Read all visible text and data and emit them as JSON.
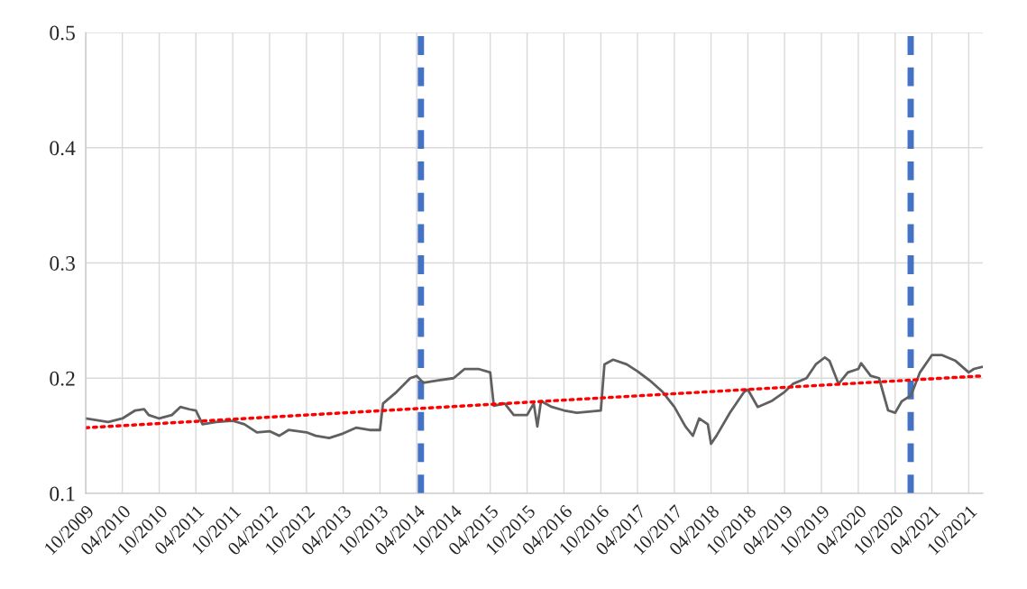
{
  "chart_data": {
    "type": "line",
    "x": [
      "2009-10-01",
      "2010-01-21",
      "2010-04-01",
      "2010-06-04",
      "2010-07-18",
      "2010-08-10",
      "2010-10-01",
      "2010-12-03",
      "2011-01-14",
      "2011-02-28",
      "2011-04-01",
      "2011-05-04",
      "2011-07-10",
      "2011-10-01",
      "2011-11-28",
      "2012-01-29",
      "2012-04-01",
      "2012-05-19",
      "2012-07-04",
      "2012-10-01",
      "2012-11-16",
      "2013-01-22",
      "2013-04-01",
      "2013-06-04",
      "2013-08-10",
      "2013-10-01",
      "2013-10-16",
      "2013-12-22",
      "2014-02-28",
      "2014-04-01",
      "2014-05-04",
      "2014-07-12",
      "2014-10-01",
      "2014-11-25",
      "2015-02-01",
      "2015-04-01",
      "2015-04-19",
      "2015-06-12",
      "2015-07-27",
      "2015-10-01",
      "2015-11-03",
      "2015-11-21",
      "2015-12-09",
      "2016-02-01",
      "2016-04-01",
      "2016-06-04",
      "2016-10-01",
      "2016-10-19",
      "2016-12-01",
      "2017-02-06",
      "2017-04-01",
      "2017-06-01",
      "2017-08-04",
      "2017-10-01",
      "2017-11-25",
      "2018-01-01",
      "2018-02-01",
      "2018-03-16",
      "2018-04-01",
      "2018-04-28",
      "2018-07-04",
      "2018-09-12",
      "2018-10-01",
      "2018-11-19",
      "2019-01-25",
      "2019-04-01",
      "2019-05-12",
      "2019-07-19",
      "2019-09-03",
      "2019-10-18",
      "2019-11-10",
      "2019-12-25",
      "2020-02-09",
      "2020-04-01",
      "2020-04-15",
      "2020-06-01",
      "2020-07-13",
      "2020-08-27",
      "2020-10-01",
      "2020-11-03",
      "2020-12-18",
      "2021-02-01",
      "2021-04-01",
      "2021-05-22",
      "2021-07-28",
      "2021-10-01",
      "2021-10-27",
      "2021-12-10"
    ],
    "series": [
      {
        "color": "#606060",
        "line_style": "solid",
        "values": [
          0.165,
          0.162,
          0.165,
          0.172,
          0.173,
          0.168,
          0.165,
          0.168,
          0.175,
          0.173,
          0.172,
          0.16,
          0.162,
          0.163,
          0.16,
          0.153,
          0.154,
          0.15,
          0.155,
          0.153,
          0.15,
          0.148,
          0.152,
          0.157,
          0.155,
          0.155,
          0.178,
          0.188,
          0.2,
          0.202,
          0.196,
          0.198,
          0.2,
          0.208,
          0.208,
          0.205,
          0.176,
          0.178,
          0.168,
          0.168,
          0.178,
          0.158,
          0.18,
          0.175,
          0.172,
          0.17,
          0.172,
          0.212,
          0.216,
          0.212,
          0.206,
          0.198,
          0.188,
          0.175,
          0.158,
          0.15,
          0.165,
          0.16,
          0.143,
          0.15,
          0.17,
          0.188,
          0.19,
          0.175,
          0.18,
          0.188,
          0.195,
          0.2,
          0.212,
          0.218,
          0.215,
          0.195,
          0.205,
          0.208,
          0.213,
          0.202,
          0.2,
          0.172,
          0.17,
          0.18,
          0.185,
          0.205,
          0.22,
          0.22,
          0.215,
          0.205,
          0.208,
          0.21
        ]
      },
      {
        "color": "#ff0000",
        "line_style": "dotted",
        "x": [
          "2009-10-01",
          "2021-12-10"
        ],
        "values": [
          0.157,
          0.202
        ]
      }
    ],
    "ref_lines": [
      {
        "axis": "x",
        "value": "2014-04-22",
        "color": "#4472c4",
        "line_style": "dashed"
      },
      {
        "axis": "x",
        "value": "2020-12-17",
        "color": "#4472c4",
        "line_style": "dashed"
      }
    ],
    "xlim": [
      "2009-10-01",
      "2021-12-10"
    ],
    "xticks": [
      {
        "value": "2009-10-01",
        "label": "10/2009"
      },
      {
        "value": "2010-04-01",
        "label": "04/2010"
      },
      {
        "value": "2010-10-01",
        "label": "10/2010"
      },
      {
        "value": "2011-04-01",
        "label": "04/2011"
      },
      {
        "value": "2011-10-01",
        "label": "10/2011"
      },
      {
        "value": "2012-04-01",
        "label": "04/2012"
      },
      {
        "value": "2012-10-01",
        "label": "10/2012"
      },
      {
        "value": "2013-04-01",
        "label": "04/2013"
      },
      {
        "value": "2013-10-01",
        "label": "10/2013"
      },
      {
        "value": "2014-04-01",
        "label": "04/2014"
      },
      {
        "value": "2014-10-01",
        "label": "10/2014"
      },
      {
        "value": "2015-04-01",
        "label": "04/2015"
      },
      {
        "value": "2015-10-01",
        "label": "10/2015"
      },
      {
        "value": "2016-04-01",
        "label": "04/2016"
      },
      {
        "value": "2016-10-01",
        "label": "10/2016"
      },
      {
        "value": "2017-04-01",
        "label": "04/2017"
      },
      {
        "value": "2017-10-01",
        "label": "10/2017"
      },
      {
        "value": "2018-04-01",
        "label": "04/2018"
      },
      {
        "value": "2018-10-01",
        "label": "10/2018"
      },
      {
        "value": "2019-04-01",
        "label": "04/2019"
      },
      {
        "value": "2019-10-01",
        "label": "10/2019"
      },
      {
        "value": "2020-04-01",
        "label": "04/2020"
      },
      {
        "value": "2020-10-01",
        "label": "10/2020"
      },
      {
        "value": "2021-04-01",
        "label": "04/2021"
      },
      {
        "value": "2021-10-01",
        "label": "10/2021"
      }
    ],
    "ylim": [
      0.1,
      0.5
    ],
    "yticks": [
      {
        "value": 0.1,
        "label": "0.1"
      },
      {
        "value": 0.2,
        "label": "0.2"
      },
      {
        "value": 0.3,
        "label": "0.3"
      },
      {
        "value": 0.4,
        "label": "0.4"
      },
      {
        "value": 0.5,
        "label": "0.5"
      }
    ],
    "grid": true,
    "legend": false
  }
}
